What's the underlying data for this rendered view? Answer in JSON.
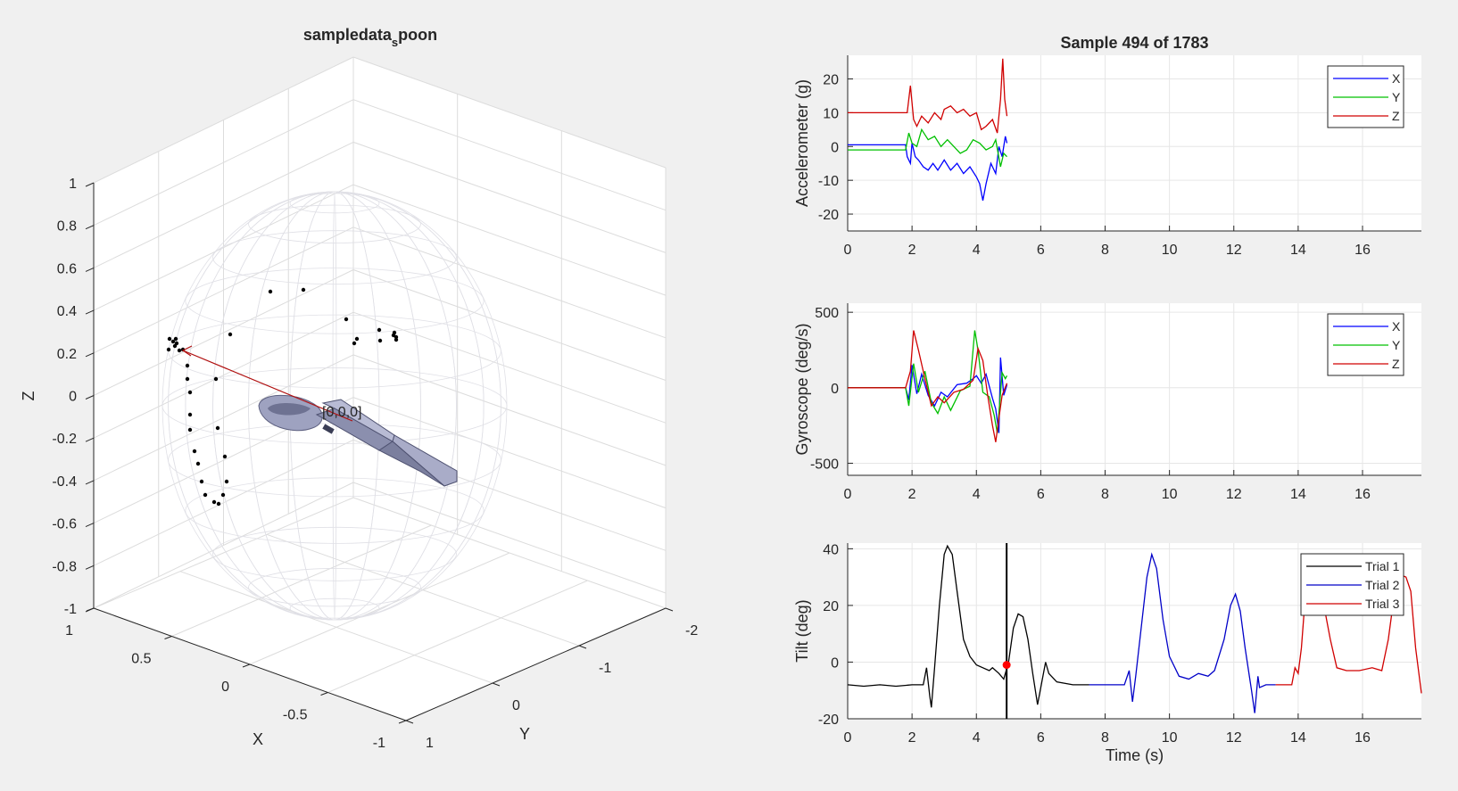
{
  "window": {
    "background": "#f0f0f0"
  },
  "chart_data": [
    {
      "type": "scatter",
      "title": "sampledata",
      "title_subscript": "s",
      "title_suffix": "poon",
      "zlabel": "Z",
      "xlabel": "X",
      "ylabel": "Y",
      "zticks": [
        "1",
        "0.8",
        "0.6",
        "0.4",
        "0.2",
        "0",
        "-0.2",
        "-0.4",
        "-0.6",
        "-0.8",
        "-1"
      ],
      "xticks": [
        "1",
        "0.5",
        "0",
        "-0.5",
        "-1"
      ],
      "yticks": [
        "-2",
        "-1",
        "0",
        "1"
      ],
      "origin_label": "[0,0,0]",
      "grid": true,
      "wireframe_sphere": true,
      "arrow_color": "#b01010",
      "marker_color": "#000000",
      "spoon_color": "#8b8fae"
    },
    {
      "type": "line",
      "title": "Sample 494 of 1783",
      "ylabel": "Accelerometer (g)",
      "xlabel": "",
      "xlim": [
        0,
        17.83
      ],
      "ylim": [
        -25,
        27
      ],
      "xticks": [
        "0",
        "2",
        "4",
        "6",
        "8",
        "10",
        "12",
        "14",
        "16"
      ],
      "yticks": [
        "20",
        "10",
        "0",
        "-10",
        "-20"
      ],
      "legend": "top-right",
      "grid": true,
      "series": [
        {
          "name": "X",
          "color": "#0000ff",
          "points": [
            [
              0,
              0.5
            ],
            [
              1.8,
              0.5
            ],
            [
              1.85,
              -3
            ],
            [
              1.95,
              -5
            ],
            [
              2.0,
              1
            ],
            [
              2.1,
              -3
            ],
            [
              2.2,
              -4
            ],
            [
              2.35,
              -6
            ],
            [
              2.5,
              -7
            ],
            [
              2.65,
              -5
            ],
            [
              2.8,
              -7
            ],
            [
              3.0,
              -4
            ],
            [
              3.2,
              -7
            ],
            [
              3.4,
              -5
            ],
            [
              3.6,
              -8
            ],
            [
              3.8,
              -6
            ],
            [
              4.0,
              -9
            ],
            [
              4.1,
              -11
            ],
            [
              4.2,
              -16
            ],
            [
              4.3,
              -11
            ],
            [
              4.45,
              -5
            ],
            [
              4.6,
              -8
            ],
            [
              4.7,
              0
            ],
            [
              4.8,
              -3
            ],
            [
              4.9,
              3
            ],
            [
              4.95,
              1
            ]
          ]
        },
        {
          "name": "Y",
          "color": "#00c000",
          "points": [
            [
              0,
              -1
            ],
            [
              1.8,
              -1
            ],
            [
              1.9,
              4
            ],
            [
              2.0,
              1
            ],
            [
              2.15,
              0
            ],
            [
              2.3,
              5
            ],
            [
              2.5,
              2
            ],
            [
              2.7,
              3
            ],
            [
              2.9,
              0
            ],
            [
              3.1,
              2
            ],
            [
              3.3,
              0
            ],
            [
              3.5,
              -2
            ],
            [
              3.7,
              -1
            ],
            [
              3.9,
              2
            ],
            [
              4.1,
              1
            ],
            [
              4.3,
              -1
            ],
            [
              4.5,
              0
            ],
            [
              4.6,
              2
            ],
            [
              4.75,
              -6
            ],
            [
              4.85,
              -2
            ],
            [
              4.95,
              -3
            ]
          ]
        },
        {
          "name": "Z",
          "color": "#d00000",
          "points": [
            [
              0,
              10
            ],
            [
              1.85,
              10
            ],
            [
              1.95,
              18
            ],
            [
              2.05,
              8
            ],
            [
              2.15,
              6
            ],
            [
              2.3,
              9
            ],
            [
              2.5,
              7
            ],
            [
              2.7,
              10
            ],
            [
              2.9,
              8
            ],
            [
              3.0,
              11
            ],
            [
              3.2,
              12
            ],
            [
              3.4,
              10
            ],
            [
              3.6,
              11
            ],
            [
              3.8,
              9
            ],
            [
              4.0,
              10
            ],
            [
              4.15,
              5
            ],
            [
              4.3,
              6
            ],
            [
              4.5,
              8
            ],
            [
              4.65,
              4
            ],
            [
              4.75,
              14
            ],
            [
              4.82,
              26
            ],
            [
              4.88,
              14
            ],
            [
              4.95,
              9
            ]
          ]
        }
      ]
    },
    {
      "type": "line",
      "title": "",
      "ylabel": "Gyroscope (deg/s)",
      "xlabel": "",
      "xlim": [
        0,
        17.83
      ],
      "ylim": [
        -580,
        560
      ],
      "xticks": [
        "0",
        "2",
        "4",
        "6",
        "8",
        "10",
        "12",
        "14",
        "16"
      ],
      "yticks": [
        "500",
        "0",
        "-500"
      ],
      "legend": "top-right",
      "grid": true,
      "series": [
        {
          "name": "X",
          "color": "#0000ff",
          "points": [
            [
              0,
              0
            ],
            [
              1.8,
              0
            ],
            [
              1.9,
              -80
            ],
            [
              2.0,
              150
            ],
            [
              2.15,
              -40
            ],
            [
              2.3,
              90
            ],
            [
              2.5,
              -50
            ],
            [
              2.7,
              -120
            ],
            [
              2.9,
              -30
            ],
            [
              3.1,
              -60
            ],
            [
              3.4,
              20
            ],
            [
              3.7,
              30
            ],
            [
              3.9,
              60
            ],
            [
              4.0,
              80
            ],
            [
              4.15,
              30
            ],
            [
              4.3,
              90
            ],
            [
              4.5,
              -70
            ],
            [
              4.6,
              -140
            ],
            [
              4.7,
              -300
            ],
            [
              4.75,
              200
            ],
            [
              4.85,
              -50
            ],
            [
              4.95,
              20
            ]
          ]
        },
        {
          "name": "Y",
          "color": "#00c000",
          "points": [
            [
              0,
              0
            ],
            [
              1.8,
              0
            ],
            [
              1.9,
              -120
            ],
            [
              2.05,
              160
            ],
            [
              2.2,
              -30
            ],
            [
              2.4,
              110
            ],
            [
              2.6,
              -100
            ],
            [
              2.8,
              -170
            ],
            [
              3.0,
              -60
            ],
            [
              3.2,
              -150
            ],
            [
              3.5,
              -20
            ],
            [
              3.8,
              10
            ],
            [
              3.95,
              380
            ],
            [
              4.05,
              250
            ],
            [
              4.2,
              -30
            ],
            [
              4.4,
              -60
            ],
            [
              4.55,
              -180
            ],
            [
              4.65,
              -300
            ],
            [
              4.8,
              100
            ],
            [
              4.9,
              60
            ],
            [
              4.95,
              80
            ]
          ]
        },
        {
          "name": "Z",
          "color": "#d00000",
          "points": [
            [
              0,
              0
            ],
            [
              1.8,
              0
            ],
            [
              1.95,
              110
            ],
            [
              2.05,
              380
            ],
            [
              2.2,
              250
            ],
            [
              2.4,
              60
            ],
            [
              2.6,
              -120
            ],
            [
              2.8,
              -60
            ],
            [
              3.0,
              -100
            ],
            [
              3.3,
              -30
            ],
            [
              3.6,
              -10
            ],
            [
              3.9,
              50
            ],
            [
              4.05,
              260
            ],
            [
              4.2,
              180
            ],
            [
              4.35,
              -50
            ],
            [
              4.5,
              -250
            ],
            [
              4.6,
              -360
            ],
            [
              4.7,
              -200
            ],
            [
              4.8,
              -50
            ],
            [
              4.95,
              30
            ]
          ]
        }
      ]
    },
    {
      "type": "line",
      "title": "",
      "ylabel": "Tilt (deg)",
      "xlabel": "Time (s)",
      "xlim": [
        0,
        17.83
      ],
      "ylim": [
        -20,
        42
      ],
      "xticks": [
        "0",
        "2",
        "4",
        "6",
        "8",
        "10",
        "12",
        "14",
        "16"
      ],
      "yticks": [
        "40",
        "20",
        "0",
        "-20"
      ],
      "legend": "top-right",
      "grid": true,
      "cursor_x": 4.94,
      "cursor_point": {
        "x": 4.94,
        "y": -1
      },
      "cursor_color": "#000000",
      "marker_color": "#ff0000",
      "series": [
        {
          "name": "Trial 1",
          "color": "#000000",
          "points": [
            [
              0,
              -8
            ],
            [
              0.5,
              -8.5
            ],
            [
              1.0,
              -8
            ],
            [
              1.5,
              -8.5
            ],
            [
              2.0,
              -8
            ],
            [
              2.35,
              -8
            ],
            [
              2.45,
              -2
            ],
            [
              2.55,
              -12
            ],
            [
              2.6,
              -16
            ],
            [
              2.7,
              -2
            ],
            [
              2.85,
              20
            ],
            [
              3.0,
              38
            ],
            [
              3.1,
              41
            ],
            [
              3.25,
              38
            ],
            [
              3.4,
              25
            ],
            [
              3.6,
              8
            ],
            [
              3.8,
              2
            ],
            [
              4.0,
              -1
            ],
            [
              4.2,
              -2
            ],
            [
              4.4,
              -3
            ],
            [
              4.5,
              -2
            ],
            [
              4.7,
              -4
            ],
            [
              4.85,
              -6
            ],
            [
              5.0,
              0
            ],
            [
              5.15,
              12
            ],
            [
              5.3,
              17
            ],
            [
              5.45,
              16
            ],
            [
              5.6,
              8
            ],
            [
              5.75,
              -4
            ],
            [
              5.9,
              -15
            ],
            [
              6.05,
              -6
            ],
            [
              6.15,
              0
            ],
            [
              6.25,
              -4
            ],
            [
              6.5,
              -7
            ],
            [
              7.0,
              -8
            ],
            [
              7.5,
              -8
            ]
          ]
        },
        {
          "name": "Trial 2",
          "color": "#0000c8",
          "points": [
            [
              7.5,
              -8
            ],
            [
              8.0,
              -8
            ],
            [
              8.6,
              -8
            ],
            [
              8.75,
              -3
            ],
            [
              8.85,
              -14
            ],
            [
              8.95,
              -5
            ],
            [
              9.1,
              10
            ],
            [
              9.3,
              30
            ],
            [
              9.45,
              38
            ],
            [
              9.6,
              33
            ],
            [
              9.8,
              15
            ],
            [
              10.0,
              2
            ],
            [
              10.3,
              -5
            ],
            [
              10.6,
              -6
            ],
            [
              10.9,
              -4
            ],
            [
              11.2,
              -5
            ],
            [
              11.4,
              -3
            ],
            [
              11.7,
              8
            ],
            [
              11.9,
              20
            ],
            [
              12.05,
              24
            ],
            [
              12.2,
              18
            ],
            [
              12.35,
              5
            ],
            [
              12.55,
              -10
            ],
            [
              12.65,
              -18
            ],
            [
              12.75,
              -5
            ],
            [
              12.8,
              -9
            ],
            [
              13.0,
              -8
            ],
            [
              13.3,
              -8
            ]
          ]
        },
        {
          "name": "Trial 3",
          "color": "#d00000",
          "points": [
            [
              13.3,
              -8
            ],
            [
              13.8,
              -8
            ],
            [
              13.9,
              -2
            ],
            [
              14.0,
              -4
            ],
            [
              14.1,
              5
            ],
            [
              14.2,
              20
            ],
            [
              14.35,
              34
            ],
            [
              14.45,
              37
            ],
            [
              14.6,
              32
            ],
            [
              14.8,
              20
            ],
            [
              15.0,
              8
            ],
            [
              15.2,
              -2
            ],
            [
              15.5,
              -3
            ],
            [
              15.9,
              -3
            ],
            [
              16.3,
              -2
            ],
            [
              16.6,
              -3
            ],
            [
              16.8,
              8
            ],
            [
              17.0,
              25
            ],
            [
              17.15,
              31
            ],
            [
              17.35,
              30
            ],
            [
              17.5,
              25
            ],
            [
              17.65,
              5
            ],
            [
              17.83,
              -11
            ]
          ]
        }
      ]
    }
  ]
}
